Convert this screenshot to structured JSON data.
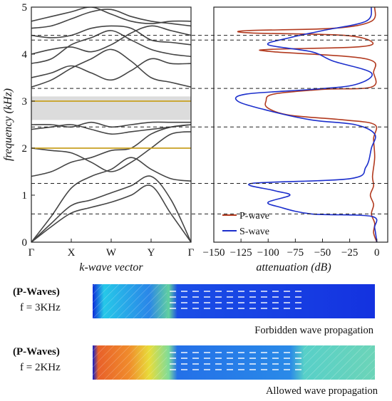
{
  "chart_data": [
    {
      "type": "line",
      "chart_id": "band-structure",
      "title": "",
      "xlabel": "k-wave vector",
      "ylabel": "frequency (kHz)",
      "x_ticks": [
        "Γ",
        "X",
        "W",
        "Y",
        "Γ"
      ],
      "y_ticks": [
        "0",
        "1",
        "2",
        "3",
        "4",
        "5"
      ],
      "ylim": [
        0,
        5
      ],
      "band_gap": {
        "from": 2.6,
        "to": 3.1
      },
      "highlight_frequencies": [
        2.0,
        3.0
      ],
      "dashed_levels": [
        0.6,
        1.25,
        2.45,
        3.27,
        4.3,
        4.4
      ],
      "x": [
        0,
        0.5,
        1,
        1.5,
        2,
        2.5,
        3,
        3.5,
        4
      ],
      "series": [
        {
          "values": [
            0,
            0.33,
            0.62,
            0.74,
            0.85,
            1.0,
            1.2,
            0.6,
            0
          ]
        },
        {
          "values": [
            0,
            0.4,
            0.78,
            0.9,
            1.05,
            1.2,
            1.4,
            0.9,
            0
          ]
        },
        {
          "values": [
            0,
            0.55,
            1.15,
            1.4,
            1.55,
            1.8,
            1.55,
            1.35,
            1.3
          ]
        },
        {
          "values": [
            1.4,
            1.5,
            1.7,
            1.8,
            1.95,
            2.0,
            2.3,
            2.45,
            2.5
          ]
        },
        {
          "values": [
            2.0,
            1.95,
            1.9,
            1.7,
            1.5,
            1.7,
            2.0,
            2.3,
            2.35
          ]
        },
        {
          "values": [
            2.4,
            2.45,
            2.5,
            2.4,
            2.3,
            2.35,
            2.4,
            2.45,
            2.5
          ]
        },
        {
          "values": [
            2.5,
            2.5,
            2.45,
            2.55,
            2.45,
            2.5,
            2.55,
            2.55,
            2.55
          ]
        },
        {
          "values": [
            3.3,
            3.45,
            3.7,
            3.9,
            4.1,
            3.85,
            3.5,
            3.4,
            3.3
          ]
        },
        {
          "values": [
            3.5,
            3.6,
            3.75,
            3.6,
            3.45,
            3.65,
            3.9,
            3.8,
            3.8
          ]
        },
        {
          "values": [
            3.8,
            3.9,
            4.2,
            4.35,
            4.5,
            4.3,
            4.1,
            4.0,
            3.95
          ]
        },
        {
          "values": [
            4.0,
            4.1,
            4.15,
            4.05,
            4.2,
            4.45,
            4.6,
            4.5,
            4.4
          ]
        },
        {
          "values": [
            4.4,
            4.35,
            4.4,
            4.55,
            4.6,
            4.55,
            4.3,
            4.25,
            4.2
          ]
        },
        {
          "values": [
            4.55,
            4.6,
            4.75,
            4.9,
            4.95,
            4.8,
            4.7,
            4.65,
            4.6
          ]
        },
        {
          "values": [
            4.7,
            4.8,
            4.9,
            5.0,
            4.85,
            4.7,
            4.65,
            4.7,
            4.7
          ]
        }
      ]
    },
    {
      "type": "line",
      "chart_id": "attenuation",
      "title": "",
      "xlabel": "attenuation (dB)",
      "ylabel": "",
      "x_ticks": [
        "−150",
        "−125",
        "−100",
        "−75",
        "−50",
        "−25",
        "0"
      ],
      "xlim": [
        -150,
        10
      ],
      "ylim": [
        0,
        5
      ],
      "dashed_levels": [
        0.6,
        1.25,
        2.45,
        3.27,
        4.3,
        4.4
      ],
      "legend": {
        "position": "lower-right",
        "entries": [
          "P-wave",
          "S-wave"
        ]
      },
      "series": [
        {
          "name": "P-wave",
          "color": "#b23a1f",
          "points": [
            [
              0,
              0
            ],
            [
              -3,
              0.2
            ],
            [
              -2,
              0.4
            ],
            [
              -5,
              0.6
            ],
            [
              -3,
              0.8
            ],
            [
              -6,
              1.0
            ],
            [
              -3,
              1.2
            ],
            [
              -4,
              1.4
            ],
            [
              -2,
              1.8
            ],
            [
              -3,
              2.2
            ],
            [
              -2,
              2.5
            ],
            [
              -30,
              2.6
            ],
            [
              -80,
              2.7
            ],
            [
              -100,
              2.85
            ],
            [
              -102,
              3.0
            ],
            [
              -95,
              3.15
            ],
            [
              -50,
              3.25
            ],
            [
              -5,
              3.3
            ],
            [
              -3,
              3.6
            ],
            [
              -10,
              3.9
            ],
            [
              -95,
              4.05
            ],
            [
              -100,
              4.1
            ],
            [
              -20,
              4.15
            ],
            [
              -4,
              4.25
            ],
            [
              -30,
              4.4
            ],
            [
              -115,
              4.45
            ],
            [
              -120,
              4.5
            ],
            [
              -40,
              4.55
            ],
            [
              -5,
              4.7
            ],
            [
              -2,
              5.0
            ]
          ]
        },
        {
          "name": "S-wave",
          "color": "#1c2fcc",
          "points": [
            [
              0,
              0
            ],
            [
              -2,
              0.3
            ],
            [
              -5,
              0.55
            ],
            [
              -60,
              0.6
            ],
            [
              -90,
              0.75
            ],
            [
              -100,
              0.85
            ],
            [
              -80,
              1.0
            ],
            [
              -95,
              1.1
            ],
            [
              -115,
              1.25
            ],
            [
              -25,
              1.35
            ],
            [
              -10,
              1.6
            ],
            [
              -5,
              2.0
            ],
            [
              -2,
              2.3
            ],
            [
              -20,
              2.5
            ],
            [
              -60,
              2.6
            ],
            [
              -100,
              2.8
            ],
            [
              -128,
              3.0
            ],
            [
              -120,
              3.15
            ],
            [
              -60,
              3.25
            ],
            [
              -20,
              3.35
            ],
            [
              -5,
              3.6
            ],
            [
              -40,
              3.85
            ],
            [
              -60,
              4.05
            ],
            [
              -100,
              4.2
            ],
            [
              -80,
              4.35
            ],
            [
              -50,
              4.5
            ],
            [
              -10,
              4.7
            ],
            [
              -5,
              5.0
            ]
          ]
        }
      ]
    }
  ],
  "cases": [
    {
      "wave_type": "(P-Waves)",
      "frequency_label": "f = 3KHz",
      "caption": "Forbidden wave propagation",
      "propagation": "forbidden"
    },
    {
      "wave_type": "(P-Waves)",
      "frequency_label": "f = 2KHz",
      "caption": "Allowed wave propagation",
      "propagation": "allowed"
    }
  ]
}
